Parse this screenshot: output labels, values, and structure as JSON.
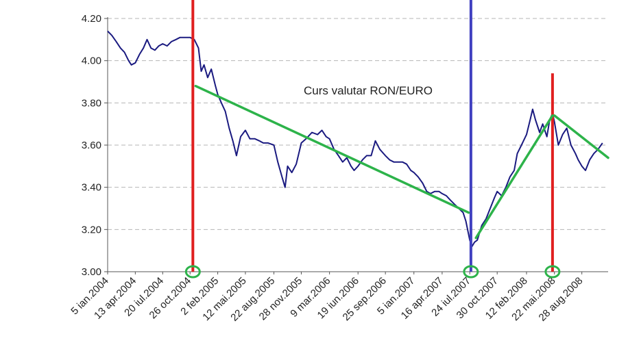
{
  "chart_data": {
    "type": "line",
    "title": "Curs valutar RON/EURO",
    "xlabel": "",
    "ylabel": "",
    "ylim": [
      3.0,
      4.2
    ],
    "xlim": [
      "2004-01-05",
      "2008-11-30"
    ],
    "grid": "horizontal-dashed",
    "y_ticks": [
      "3.00",
      "3.20",
      "3.40",
      "3.60",
      "3.80",
      "4.00",
      "4.20"
    ],
    "x_ticks": [
      {
        "date": "2004-01-05",
        "label": "5 ian.2004"
      },
      {
        "date": "2004-04-13",
        "label": "13 apr.2004"
      },
      {
        "date": "2004-07-20",
        "label": "20 iul.2004"
      },
      {
        "date": "2004-10-26",
        "label": "26 oct.2004"
      },
      {
        "date": "2005-02-02",
        "label": "2 feb.2005"
      },
      {
        "date": "2005-05-12",
        "label": "12 mai.2005"
      },
      {
        "date": "2005-08-22",
        "label": "22 aug.2005"
      },
      {
        "date": "2005-11-28",
        "label": "28 nov.2005"
      },
      {
        "date": "2006-03-09",
        "label": "9 mar.2006"
      },
      {
        "date": "2006-06-19",
        "label": "19 iun.2006"
      },
      {
        "date": "2006-09-25",
        "label": "25 sep.2006"
      },
      {
        "date": "2007-01-05",
        "label": "5 ian.2007"
      },
      {
        "date": "2007-04-16",
        "label": "16 apr.2007"
      },
      {
        "date": "2007-07-24",
        "label": "24 iul.2007"
      },
      {
        "date": "2007-10-30",
        "label": "30 oct.2007"
      },
      {
        "date": "2008-02-12",
        "label": "12 feb.2008"
      },
      {
        "date": "2008-05-22",
        "label": "22 mai.2008"
      },
      {
        "date": "2008-08-28",
        "label": "28 aug.2008"
      }
    ],
    "series": [
      {
        "name": "",
        "color": "#1a1a80",
        "points": [
          [
            "2004-01-05",
            4.14
          ],
          [
            "2004-01-20",
            4.12
          ],
          [
            "2004-02-05",
            4.09
          ],
          [
            "2004-02-20",
            4.06
          ],
          [
            "2004-03-05",
            4.04
          ],
          [
            "2004-03-20",
            4.0
          ],
          [
            "2004-03-30",
            3.98
          ],
          [
            "2004-04-13",
            3.99
          ],
          [
            "2004-04-28",
            4.03
          ],
          [
            "2004-05-12",
            4.06
          ],
          [
            "2004-05-25",
            4.1
          ],
          [
            "2004-06-08",
            4.06
          ],
          [
            "2004-06-22",
            4.05
          ],
          [
            "2004-07-06",
            4.07
          ],
          [
            "2004-07-20",
            4.08
          ],
          [
            "2004-08-05",
            4.07
          ],
          [
            "2004-08-20",
            4.09
          ],
          [
            "2004-09-05",
            4.1
          ],
          [
            "2004-09-20",
            4.11
          ],
          [
            "2004-10-05",
            4.11
          ],
          [
            "2004-10-26",
            4.11
          ],
          [
            "2004-11-10",
            4.1
          ],
          [
            "2004-11-25",
            4.06
          ],
          [
            "2004-12-05",
            3.95
          ],
          [
            "2004-12-15",
            3.98
          ],
          [
            "2004-12-28",
            3.92
          ],
          [
            "2005-01-10",
            3.96
          ],
          [
            "2005-01-25",
            3.88
          ],
          [
            "2005-02-02",
            3.84
          ],
          [
            "2005-02-15",
            3.8
          ],
          [
            "2005-03-01",
            3.76
          ],
          [
            "2005-03-15",
            3.68
          ],
          [
            "2005-03-28",
            3.62
          ],
          [
            "2005-04-10",
            3.55
          ],
          [
            "2005-04-25",
            3.64
          ],
          [
            "2005-05-12",
            3.67
          ],
          [
            "2005-05-28",
            3.63
          ],
          [
            "2005-06-15",
            3.63
          ],
          [
            "2005-07-01",
            3.62
          ],
          [
            "2005-07-15",
            3.61
          ],
          [
            "2005-08-01",
            3.61
          ],
          [
            "2005-08-22",
            3.6
          ],
          [
            "2005-09-05",
            3.52
          ],
          [
            "2005-09-20",
            3.45
          ],
          [
            "2005-10-01",
            3.4
          ],
          [
            "2005-10-10",
            3.5
          ],
          [
            "2005-10-25",
            3.47
          ],
          [
            "2005-11-10",
            3.51
          ],
          [
            "2005-11-28",
            3.61
          ],
          [
            "2005-12-15",
            3.63
          ],
          [
            "2006-01-05",
            3.66
          ],
          [
            "2006-01-25",
            3.65
          ],
          [
            "2006-02-10",
            3.67
          ],
          [
            "2006-02-25",
            3.64
          ],
          [
            "2006-03-09",
            3.63
          ],
          [
            "2006-03-25",
            3.58
          ],
          [
            "2006-04-10",
            3.55
          ],
          [
            "2006-04-25",
            3.52
          ],
          [
            "2006-05-10",
            3.54
          ],
          [
            "2006-05-25",
            3.5
          ],
          [
            "2006-06-05",
            3.48
          ],
          [
            "2006-06-19",
            3.5
          ],
          [
            "2006-07-05",
            3.53
          ],
          [
            "2006-07-20",
            3.55
          ],
          [
            "2006-08-05",
            3.55
          ],
          [
            "2006-08-20",
            3.62
          ],
          [
            "2006-09-05",
            3.58
          ],
          [
            "2006-09-25",
            3.55
          ],
          [
            "2006-10-10",
            3.53
          ],
          [
            "2006-10-25",
            3.52
          ],
          [
            "2006-11-10",
            3.52
          ],
          [
            "2006-11-25",
            3.52
          ],
          [
            "2006-12-10",
            3.51
          ],
          [
            "2006-12-25",
            3.48
          ],
          [
            "2007-01-05",
            3.47
          ],
          [
            "2007-01-20",
            3.45
          ],
          [
            "2007-02-05",
            3.42
          ],
          [
            "2007-02-20",
            3.38
          ],
          [
            "2007-03-05",
            3.37
          ],
          [
            "2007-03-20",
            3.38
          ],
          [
            "2007-04-05",
            3.38
          ],
          [
            "2007-04-16",
            3.37
          ],
          [
            "2007-05-01",
            3.36
          ],
          [
            "2007-05-15",
            3.34
          ],
          [
            "2007-05-30",
            3.32
          ],
          [
            "2007-06-15",
            3.3
          ],
          [
            "2007-06-30",
            3.28
          ],
          [
            "2007-07-10",
            3.24
          ],
          [
            "2007-07-24",
            3.15
          ],
          [
            "2007-08-01",
            3.12
          ],
          [
            "2007-08-10",
            3.14
          ],
          [
            "2007-08-20",
            3.15
          ],
          [
            "2007-09-05",
            3.22
          ],
          [
            "2007-09-20",
            3.25
          ],
          [
            "2007-10-05",
            3.3
          ],
          [
            "2007-10-20",
            3.35
          ],
          [
            "2007-10-30",
            3.38
          ],
          [
            "2007-11-15",
            3.36
          ],
          [
            "2007-11-30",
            3.4
          ],
          [
            "2007-12-15",
            3.45
          ],
          [
            "2007-12-30",
            3.48
          ],
          [
            "2008-01-10",
            3.56
          ],
          [
            "2008-01-25",
            3.6
          ],
          [
            "2008-02-12",
            3.65
          ],
          [
            "2008-02-25",
            3.72
          ],
          [
            "2008-03-05",
            3.77
          ],
          [
            "2008-03-15",
            3.72
          ],
          [
            "2008-03-30",
            3.66
          ],
          [
            "2008-04-10",
            3.7
          ],
          [
            "2008-04-25",
            3.64
          ],
          [
            "2008-05-05",
            3.72
          ],
          [
            "2008-05-15",
            3.75
          ],
          [
            "2008-05-22",
            3.71
          ],
          [
            "2008-06-05",
            3.6
          ],
          [
            "2008-06-20",
            3.65
          ],
          [
            "2008-07-05",
            3.68
          ],
          [
            "2008-07-20",
            3.6
          ],
          [
            "2008-08-05",
            3.56
          ],
          [
            "2008-08-15",
            3.53
          ],
          [
            "2008-08-28",
            3.5
          ],
          [
            "2008-09-10",
            3.48
          ],
          [
            "2008-09-25",
            3.53
          ],
          [
            "2008-10-10",
            3.56
          ],
          [
            "2008-10-25",
            3.58
          ],
          [
            "2008-11-10",
            3.61
          ]
        ]
      }
    ],
    "trend_lines": [
      {
        "color": "#2db34a",
        "from": [
          "2004-11-15",
          3.88
        ],
        "to": [
          "2007-07-20",
          3.28
        ]
      },
      {
        "color": "#2db34a",
        "from": [
          "2007-08-15",
          3.16
        ],
        "to": [
          "2008-05-15",
          3.74
        ]
      },
      {
        "color": "#2db34a",
        "from": [
          "2008-05-22",
          3.74
        ],
        "to": [
          "2008-11-30",
          3.54
        ]
      }
    ],
    "markers": [
      {
        "color": "#e02020",
        "date": "2004-11-05",
        "top": 4.33
      },
      {
        "color": "#4040c0",
        "date": "2007-07-28",
        "top": 4.32
      },
      {
        "color": "#e02020",
        "date": "2008-05-15",
        "top": 3.94
      }
    ],
    "circled_points": [
      {
        "color": "#2db34a",
        "date": "2004-11-05",
        "value": 3.0
      },
      {
        "color": "#2db34a",
        "date": "2007-07-28",
        "value": 3.0
      },
      {
        "color": "#2db34a",
        "date": "2008-05-15",
        "value": 3.0
      }
    ]
  }
}
